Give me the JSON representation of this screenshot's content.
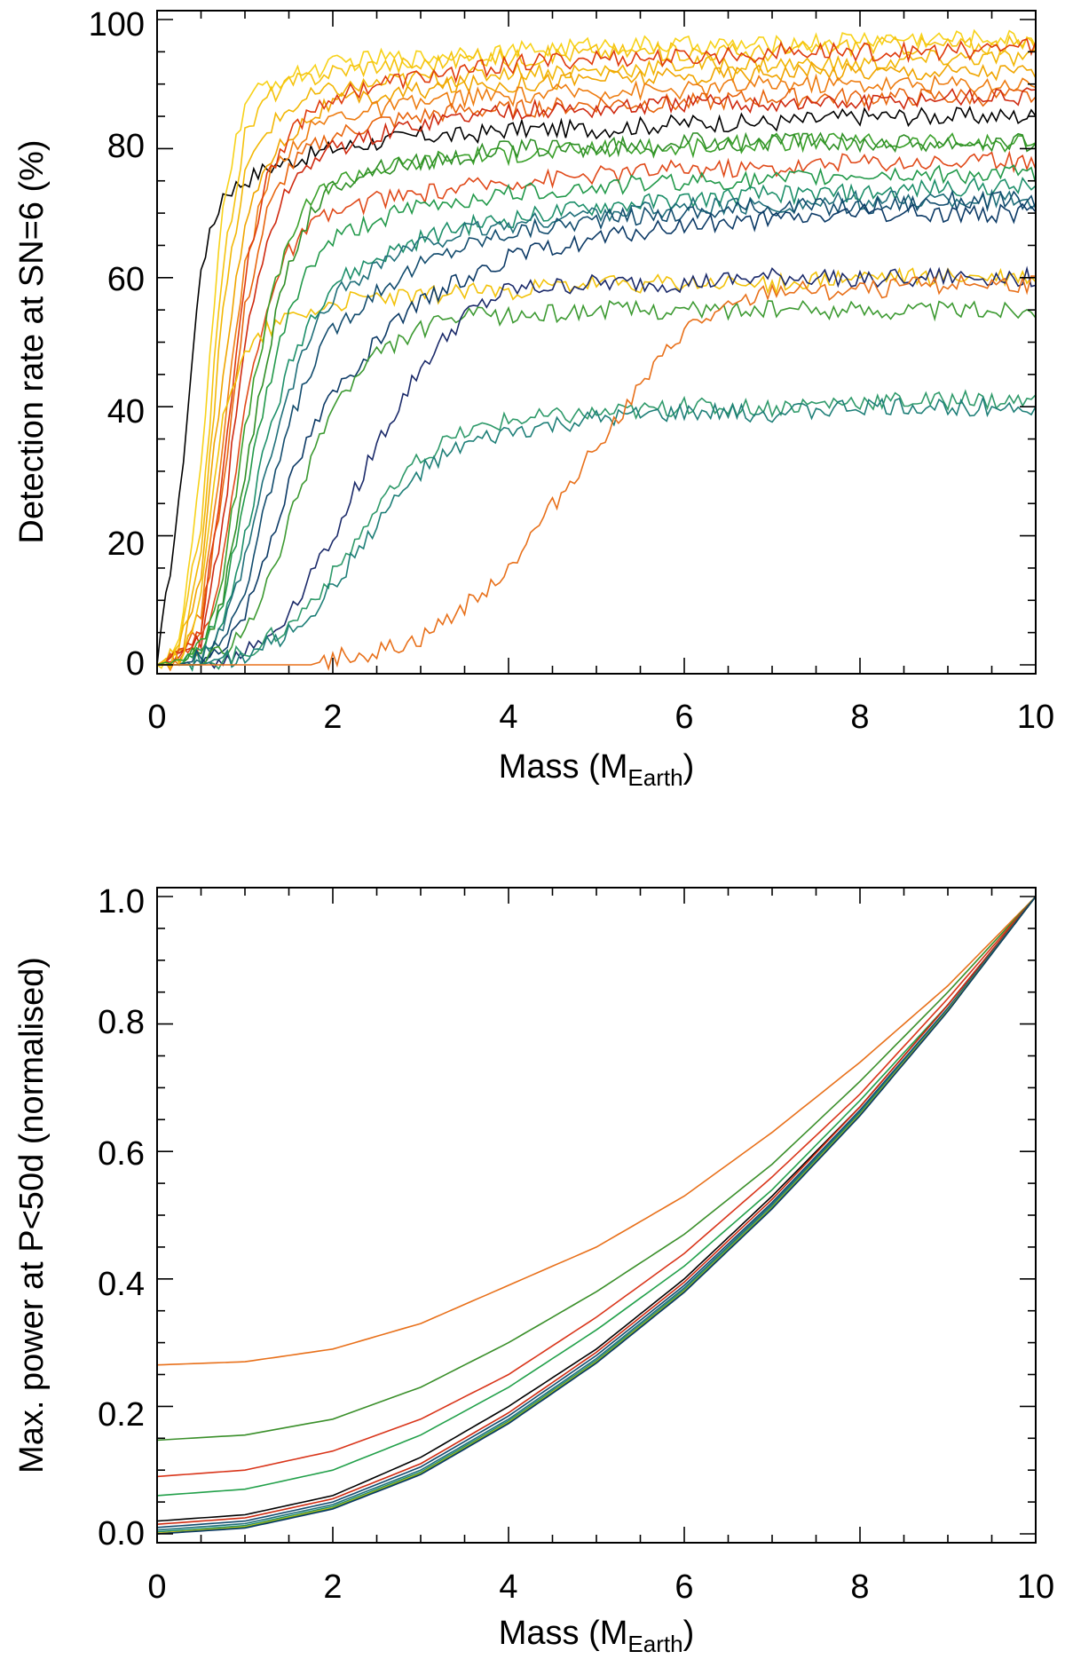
{
  "chart_data": [
    {
      "type": "line",
      "panel": "top",
      "ylabel": "Detection rate at SN=6 (%)",
      "xlabel_main": "Mass (M",
      "xlabel_sub": "Earth",
      "xlabel_end": ")",
      "xlim": [
        0,
        10
      ],
      "ylim": [
        0,
        100
      ],
      "xticks": [
        0,
        2,
        4,
        6,
        8,
        10
      ],
      "yticks": [
        0,
        20,
        40,
        60,
        80,
        100
      ],
      "xtick_labels": [
        "0",
        "2",
        "4",
        "6",
        "8",
        "10"
      ],
      "ytick_labels": [
        "0",
        "20",
        "40",
        "60",
        "80",
        "100"
      ],
      "x_samples": [
        0,
        0.25,
        0.5,
        0.75,
        1,
        1.25,
        1.5,
        1.75,
        2,
        2.5,
        3,
        3.5,
        4,
        5,
        6,
        7,
        8,
        9,
        10
      ],
      "series": [
        {
          "name": "curve-01",
          "color": "#000000",
          "values": [
            0,
            25,
            62,
            73,
            75,
            77,
            78,
            79,
            80,
            81,
            82,
            82,
            83,
            83,
            84,
            84,
            85,
            85,
            85
          ]
        },
        {
          "name": "curve-02",
          "color": "#f7d21a",
          "values": [
            0,
            3,
            30,
            72,
            87,
            90,
            91,
            92,
            93,
            94,
            94,
            95,
            95,
            96,
            96,
            96,
            97,
            97,
            97
          ]
        },
        {
          "name": "curve-03",
          "color": "#f5c30e",
          "values": [
            0,
            2,
            22,
            62,
            82,
            88,
            90,
            91,
            92,
            93,
            93,
            94,
            94,
            95,
            95,
            95,
            96,
            96,
            96
          ]
        },
        {
          "name": "curve-04",
          "color": "#f2b705",
          "values": [
            0,
            2,
            18,
            55,
            76,
            83,
            86,
            88,
            89,
            90,
            91,
            91,
            92,
            92,
            93,
            93,
            93,
            94,
            94
          ]
        },
        {
          "name": "curve-05",
          "color": "#f0a500",
          "values": [
            0,
            1,
            14,
            46,
            68,
            78,
            82,
            85,
            87,
            88,
            89,
            90,
            90,
            91,
            91,
            92,
            92,
            92,
            92
          ]
        },
        {
          "name": "curve-06",
          "color": "#ee7d12",
          "values": [
            0,
            1,
            8,
            35,
            62,
            75,
            80,
            83,
            85,
            86,
            87,
            88,
            88,
            89,
            89,
            90,
            90,
            90,
            90
          ]
        },
        {
          "name": "curve-07",
          "color": "#e8650e",
          "values": [
            0,
            1,
            6,
            28,
            55,
            70,
            77,
            80,
            82,
            84,
            85,
            86,
            86,
            87,
            87,
            88,
            88,
            88,
            88
          ]
        },
        {
          "name": "curve-08",
          "color": "#df3a0c",
          "values": [
            0,
            1,
            6,
            30,
            60,
            76,
            82,
            86,
            88,
            90,
            91,
            92,
            93,
            94,
            94,
            95,
            95,
            95,
            96
          ]
        },
        {
          "name": "curve-09",
          "color": "#cf2a10",
          "values": [
            0,
            1,
            4,
            22,
            50,
            66,
            74,
            78,
            80,
            82,
            84,
            85,
            86,
            86,
            87,
            87,
            87,
            88,
            88
          ]
        },
        {
          "name": "curve-10",
          "color": "#e04a1a",
          "values": [
            0,
            1,
            3,
            16,
            40,
            56,
            64,
            68,
            70,
            72,
            73,
            74,
            75,
            76,
            77,
            77,
            78,
            78,
            78
          ]
        },
        {
          "name": "curve-11",
          "color": "#f2c20a",
          "values": [
            0,
            1,
            10,
            40,
            48,
            52,
            54,
            55,
            56,
            57,
            57,
            58,
            58,
            59,
            59,
            59,
            60,
            60,
            60
          ]
        },
        {
          "name": "curve-12",
          "color": "#3aa02a",
          "values": [
            0,
            1,
            3,
            14,
            36,
            54,
            66,
            72,
            75,
            77,
            78,
            79,
            79,
            80,
            80,
            81,
            81,
            81,
            81
          ]
        },
        {
          "name": "curve-13",
          "color": "#2f8f26",
          "values": [
            0,
            0,
            2,
            10,
            30,
            48,
            62,
            70,
            74,
            77,
            78,
            79,
            80,
            80,
            81,
            81,
            81,
            81,
            81
          ]
        },
        {
          "name": "curve-14",
          "color": "#22994a",
          "values": [
            0,
            0,
            2,
            9,
            26,
            42,
            55,
            62,
            66,
            69,
            71,
            72,
            73,
            74,
            75,
            75,
            76,
            76,
            76
          ]
        },
        {
          "name": "curve-15",
          "color": "#1d8f6a",
          "values": [
            0,
            0,
            1,
            6,
            20,
            35,
            46,
            54,
            59,
            63,
            66,
            68,
            69,
            71,
            72,
            73,
            73,
            74,
            74
          ]
        },
        {
          "name": "curve-16",
          "color": "#1f6f7a",
          "values": [
            0,
            0,
            1,
            5,
            16,
            30,
            42,
            51,
            57,
            62,
            65,
            67,
            68,
            70,
            71,
            71,
            72,
            72,
            72
          ]
        },
        {
          "name": "curve-17",
          "color": "#124c6e",
          "values": [
            0,
            0,
            1,
            4,
            12,
            25,
            37,
            46,
            52,
            58,
            62,
            65,
            67,
            69,
            70,
            71,
            71,
            72,
            72
          ]
        },
        {
          "name": "curve-18",
          "color": "#0c3a66",
          "values": [
            0,
            0,
            0,
            3,
            8,
            18,
            28,
            36,
            42,
            50,
            56,
            60,
            63,
            66,
            68,
            69,
            70,
            70,
            70
          ]
        },
        {
          "name": "curve-19",
          "color": "#3d9a32",
          "values": [
            0,
            0,
            0,
            2,
            5,
            12,
            22,
            32,
            40,
            48,
            52,
            54,
            54,
            55,
            55,
            55,
            55,
            55,
            55
          ]
        },
        {
          "name": "curve-20",
          "color": "#1b2a6a",
          "values": [
            0,
            0,
            0,
            1,
            2,
            4,
            8,
            14,
            20,
            34,
            46,
            54,
            58,
            59,
            59,
            60,
            60,
            60,
            60
          ]
        },
        {
          "name": "curve-21",
          "color": "#2f9a6a",
          "values": [
            0,
            0,
            0,
            1,
            2,
            4,
            6,
            10,
            14,
            24,
            32,
            36,
            38,
            39,
            40,
            40,
            41,
            41,
            41
          ]
        },
        {
          "name": "curve-22",
          "color": "#1e7f78",
          "values": [
            0,
            0,
            0,
            1,
            1,
            3,
            5,
            8,
            12,
            22,
            30,
            34,
            36,
            38,
            39,
            39,
            40,
            40,
            40
          ]
        },
        {
          "name": "curve-23",
          "color": "#e8701a",
          "values": [
            0,
            0,
            0,
            0,
            0,
            0,
            0,
            0,
            1,
            2,
            4,
            9,
            15,
            34,
            52,
            58,
            58,
            59,
            59
          ]
        }
      ]
    },
    {
      "type": "line",
      "panel": "bottom",
      "ylabel": "Max. power at P<50d (normalised)",
      "xlabel_main": "Mass (M",
      "xlabel_sub": "Earth",
      "xlabel_end": ")",
      "xlim": [
        0,
        10
      ],
      "ylim": [
        0,
        1
      ],
      "xticks": [
        0,
        2,
        4,
        6,
        8,
        10
      ],
      "yticks": [
        0,
        0.2,
        0.4,
        0.6,
        0.8,
        1.0
      ],
      "xtick_labels": [
        "0",
        "2",
        "4",
        "6",
        "8",
        "10"
      ],
      "ytick_labels": [
        "0.0",
        "0.2",
        "0.4",
        "0.6",
        "0.8",
        "1.0"
      ],
      "x_samples": [
        0,
        1,
        2,
        3,
        4,
        5,
        6,
        7,
        8,
        9,
        10
      ],
      "series": [
        {
          "name": "curve-01",
          "color": "#e8701a",
          "values": [
            0.265,
            0.27,
            0.29,
            0.33,
            0.39,
            0.45,
            0.53,
            0.63,
            0.74,
            0.86,
            1.0
          ]
        },
        {
          "name": "curve-02",
          "color": "#3a8f2a",
          "values": [
            0.147,
            0.155,
            0.18,
            0.23,
            0.3,
            0.38,
            0.47,
            0.58,
            0.71,
            0.85,
            1.0
          ]
        },
        {
          "name": "curve-03",
          "color": "#d9351a",
          "values": [
            0.09,
            0.1,
            0.13,
            0.18,
            0.25,
            0.34,
            0.44,
            0.56,
            0.69,
            0.84,
            1.0
          ]
        },
        {
          "name": "curve-04",
          "color": "#22a04a",
          "values": [
            0.06,
            0.07,
            0.1,
            0.155,
            0.23,
            0.32,
            0.42,
            0.54,
            0.68,
            0.83,
            1.0
          ]
        },
        {
          "name": "curve-05",
          "color": "#000000",
          "values": [
            0.02,
            0.03,
            0.06,
            0.12,
            0.2,
            0.29,
            0.4,
            0.53,
            0.67,
            0.83,
            1.0
          ]
        },
        {
          "name": "curve-06",
          "color": "#cf2a10",
          "values": [
            0.015,
            0.025,
            0.055,
            0.11,
            0.19,
            0.285,
            0.395,
            0.525,
            0.67,
            0.83,
            1.0
          ]
        },
        {
          "name": "curve-07",
          "color": "#124c6e",
          "values": [
            0.01,
            0.02,
            0.05,
            0.105,
            0.185,
            0.28,
            0.39,
            0.52,
            0.665,
            0.825,
            1.0
          ]
        },
        {
          "name": "curve-08",
          "color": "#1f6f7a",
          "values": [
            0.006,
            0.016,
            0.046,
            0.1,
            0.18,
            0.275,
            0.386,
            0.517,
            0.662,
            0.823,
            1.0
          ]
        },
        {
          "name": "curve-09",
          "color": "#1d8f6a",
          "values": [
            0.003,
            0.013,
            0.043,
            0.097,
            0.177,
            0.272,
            0.383,
            0.514,
            0.66,
            0.822,
            1.0
          ]
        },
        {
          "name": "curve-10",
          "color": "#f2c20a",
          "values": [
            0.001,
            0.011,
            0.041,
            0.095,
            0.175,
            0.27,
            0.381,
            0.512,
            0.658,
            0.821,
            1.0
          ]
        },
        {
          "name": "curve-11",
          "color": "#3aa02a",
          "values": [
            0.0,
            0.01,
            0.04,
            0.094,
            0.174,
            0.269,
            0.38,
            0.511,
            0.657,
            0.82,
            1.0
          ]
        },
        {
          "name": "curve-12",
          "color": "#0c3a66",
          "values": [
            0.0,
            0.009,
            0.039,
            0.093,
            0.173,
            0.268,
            0.379,
            0.51,
            0.656,
            0.82,
            1.0
          ]
        }
      ]
    }
  ]
}
